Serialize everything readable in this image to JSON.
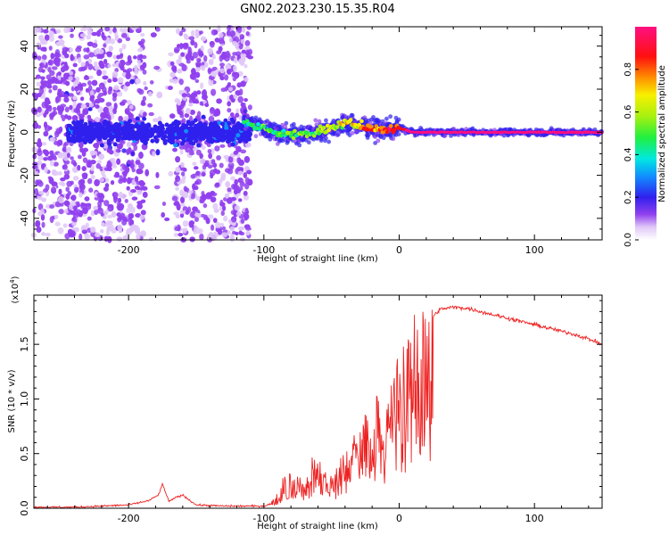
{
  "title": "GN02.2023.230.15.35.R04",
  "chart_data": [
    {
      "type": "heatmap",
      "title": "GN02.2023.230.15.35.R04",
      "xlabel": "Height of straight line (km)",
      "ylabel": "Frequency (Hz)",
      "xlim": [
        -270,
        150
      ],
      "ylim": [
        -50,
        49
      ],
      "x_ticks": [
        -200,
        -100,
        0,
        100
      ],
      "x_tick_labels": [
        "-200",
        "-100",
        "0",
        "100"
      ],
      "y_ticks": [
        -40,
        -20,
        0,
        20,
        40
      ],
      "y_tick_labels": [
        "-40",
        "-20",
        "0",
        "20",
        "40"
      ],
      "colorbar": {
        "label": "Normalized spectral amplitude",
        "range": [
          0,
          1
        ],
        "ticks": [
          0.0,
          0.2,
          0.4,
          0.6,
          0.8
        ],
        "tick_labels": [
          "0.0",
          "0.2",
          "0.4",
          "0.6",
          "0.8"
        ],
        "colormap": "rainbow (white-violet-blue-cyan-green-yellow-orange-red-magenta)"
      },
      "description_points": {
        "scattered_noise_bands_km": [
          [
            -270,
            -115
          ]
        ],
        "noise_gap_km": [
          -188,
          -166
        ],
        "dominant_track": [
          {
            "x": -115,
            "y": 4
          },
          {
            "x": -100,
            "y": 2
          },
          {
            "x": -85,
            "y": -1
          },
          {
            "x": -70,
            "y": -1
          },
          {
            "x": -55,
            "y": 1
          },
          {
            "x": -40,
            "y": 4
          },
          {
            "x": -25,
            "y": 3
          },
          {
            "x": -15,
            "y": 1
          },
          {
            "x": 0,
            "y": 2
          },
          {
            "x": 10,
            "y": 0
          },
          {
            "x": 150,
            "y": 0
          }
        ],
        "track_amplitude": [
          {
            "x": -115,
            "a": 0.35
          },
          {
            "x": -90,
            "a": 0.45
          },
          {
            "x": -60,
            "a": 0.5
          },
          {
            "x": -40,
            "a": 0.6
          },
          {
            "x": -20,
            "a": 0.75
          },
          {
            "x": 0,
            "a": 0.8
          },
          {
            "x": 10,
            "a": 0.9
          },
          {
            "x": 60,
            "a": 0.95
          },
          {
            "x": 150,
            "a": 0.9
          }
        ]
      }
    },
    {
      "type": "line",
      "xlabel": "Height of straight line (km)",
      "ylabel": "SNR (10 * v/v)",
      "y_multiplier_label": "(x10",
      "y_multiplier_exp": "4",
      "y_multiplier_close": ")",
      "xlim": [
        -270,
        150
      ],
      "ylim": [
        0,
        1.95
      ],
      "x_ticks": [
        -200,
        -100,
        0,
        100
      ],
      "x_tick_labels": [
        "-200",
        "-100",
        "0",
        "100"
      ],
      "y_ticks": [
        0,
        0.5,
        1.0,
        1.5
      ],
      "y_tick_labels": [
        "0.0",
        "0.5",
        "1.0",
        "1.5"
      ],
      "color": "#ee2222",
      "series": [
        {
          "x": [
            -270,
            -240,
            -220,
            -200,
            -185,
            -178,
            -175,
            -170,
            -165,
            -160,
            -150,
            -130,
            -110,
            -100,
            -95,
            -90,
            -85,
            -80,
            -75,
            -70,
            -65,
            -60,
            -55,
            -50,
            -45,
            -40,
            -35,
            -30,
            -25,
            -20,
            -15,
            -10,
            -5,
            0,
            5,
            10,
            15,
            20,
            25,
            30,
            40,
            50,
            60,
            70,
            80,
            90,
            100,
            110,
            120,
            130,
            140,
            150
          ],
          "y": [
            0.01,
            0.01,
            0.02,
            0.03,
            0.07,
            0.12,
            0.22,
            0.06,
            0.1,
            0.12,
            0.03,
            0.02,
            0.02,
            0.02,
            0.04,
            0.12,
            0.28,
            0.35,
            0.25,
            0.22,
            0.4,
            0.38,
            0.3,
            0.25,
            0.35,
            0.45,
            0.55,
            0.6,
            0.8,
            0.95,
            0.85,
            0.75,
            1.05,
            1.2,
            1.3,
            1.45,
            1.55,
            1.65,
            1.75,
            1.82,
            1.84,
            1.83,
            1.8,
            1.77,
            1.74,
            1.71,
            1.68,
            1.65,
            1.62,
            1.59,
            1.55,
            1.5
          ]
        }
      ]
    }
  ]
}
